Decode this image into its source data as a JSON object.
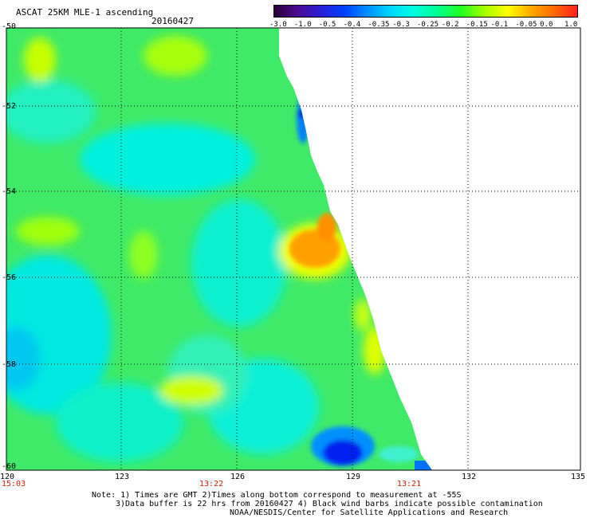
{
  "header": {
    "title": "ASCAT 25KM MLE-1 ascending",
    "date": "20160427"
  },
  "colorbar": {
    "ticks": [
      "-3.0",
      "-1.0",
      "-0.5",
      "-0.4",
      "-0.35",
      "-0.3",
      "-0.25",
      "-0.2",
      "-0.15",
      "-0.1",
      "-0.05",
      "0.0",
      "1.0"
    ],
    "colors": [
      "#2a0038",
      "#4b0b8f",
      "#2a1fd6",
      "#0040ff",
      "#0090ff",
      "#00d7ff",
      "#00ffe0",
      "#00ff90",
      "#20ff20",
      "#a0ff00",
      "#ffff00",
      "#ffaa00",
      "#ff6a00",
      "#ff2020"
    ]
  },
  "map": {
    "lat_labels": [
      "-50",
      "-52",
      "-54",
      "-56",
      "-58",
      "-60"
    ],
    "lon_labels": [
      "120",
      "123",
      "126",
      "129",
      "132",
      "135"
    ],
    "time_labels": [
      "15:03",
      "13:22",
      "13:21"
    ],
    "features": [
      {
        "name": "orange-high-mle-patch",
        "color": "#ff9a00"
      },
      {
        "name": "blue-low-mle-patch",
        "color": "#0030ff"
      }
    ]
  },
  "notes": [
    "Note: 1) Times are GMT 2)Times along bottom correspond to measurement at -55S",
    "3)Data buffer is 22 hrs from 20160427 4) Black wind barbs indicate possible contamination",
    "NOAA/NESDIS/Center for Satellite Applications and Research"
  ]
}
